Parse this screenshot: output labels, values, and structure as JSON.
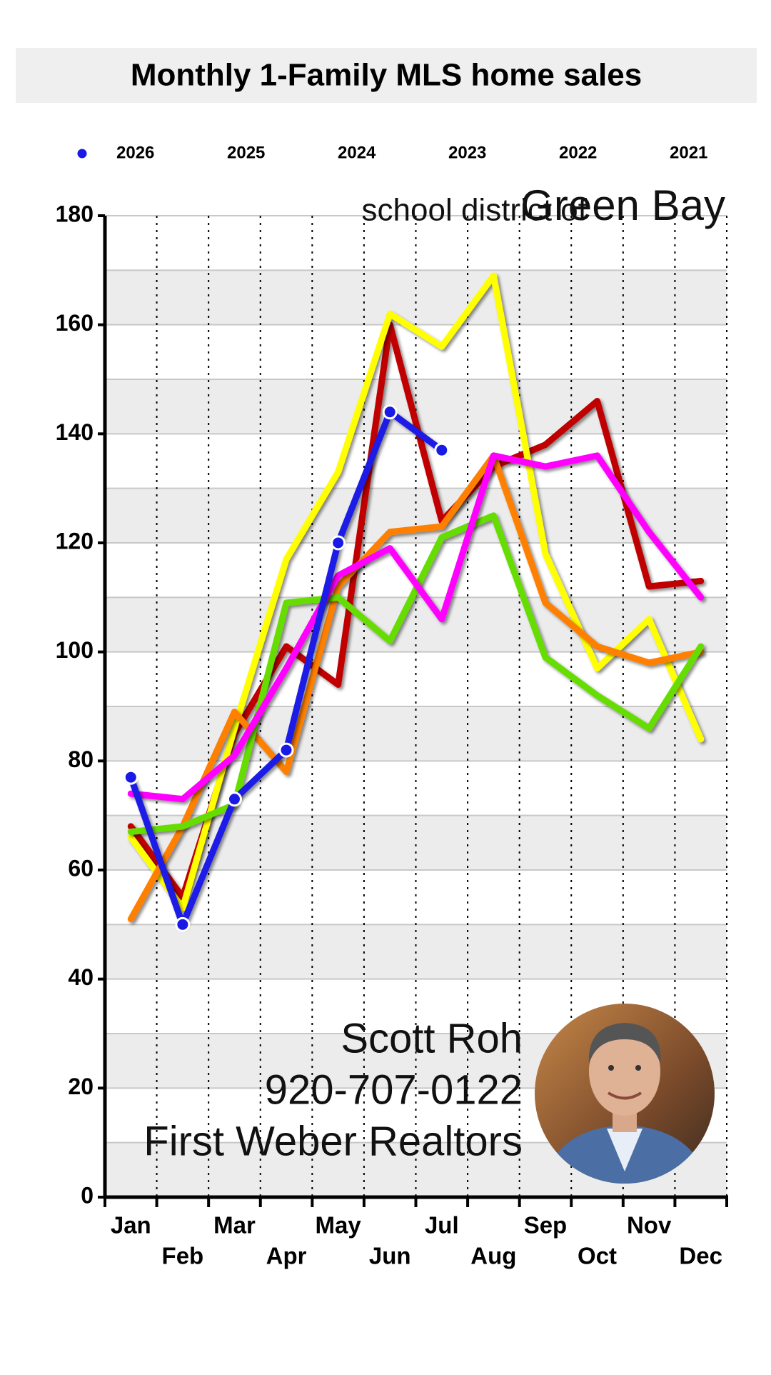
{
  "chart_data": {
    "type": "line",
    "title": "Monthly 1-Family  MLS home sales",
    "subtitle": "school district of",
    "subtitle_place": "Green Bay",
    "annotations": [
      "Scott Roh",
      "920-707-0122",
      "First Weber Realtors"
    ],
    "categories": [
      "Jan",
      "Feb",
      "Mar",
      "Apr",
      "May",
      "Jun",
      "Jul",
      "Aug",
      "Sep",
      "Oct",
      "Nov",
      "Dec"
    ],
    "series": [
      {
        "name": "2026",
        "color": "#1a1ae6",
        "markers": true,
        "values": [
          77,
          50,
          73,
          82,
          120,
          144,
          137,
          null,
          null,
          null,
          null,
          null
        ]
      },
      {
        "name": "2025",
        "color": "#ff00ff",
        "values": [
          74,
          73,
          81,
          97,
          114,
          119,
          106,
          136,
          134,
          136,
          122,
          110
        ]
      },
      {
        "name": "2024",
        "color": "#66dd00",
        "values": [
          67,
          68,
          72,
          109,
          110,
          102,
          121,
          125,
          99,
          92,
          86,
          101
        ]
      },
      {
        "name": "2023",
        "color": "#ff8000",
        "values": [
          51,
          68,
          89,
          78,
          112,
          122,
          123,
          136,
          109,
          101,
          98,
          100
        ]
      },
      {
        "name": "2022",
        "color": "#ffff00",
        "values": [
          66,
          53,
          86,
          117,
          133,
          162,
          156,
          169,
          118,
          97,
          106,
          84
        ]
      },
      {
        "name": "2021",
        "color": "#c00000",
        "values": [
          68,
          55,
          85,
          101,
          94,
          160,
          124,
          134,
          138,
          146,
          112,
          113
        ]
      }
    ],
    "ylim": [
      0,
      180
    ],
    "yticks": [
      0,
      20,
      40,
      60,
      80,
      100,
      120,
      140,
      160,
      180
    ],
    "grid": true
  }
}
